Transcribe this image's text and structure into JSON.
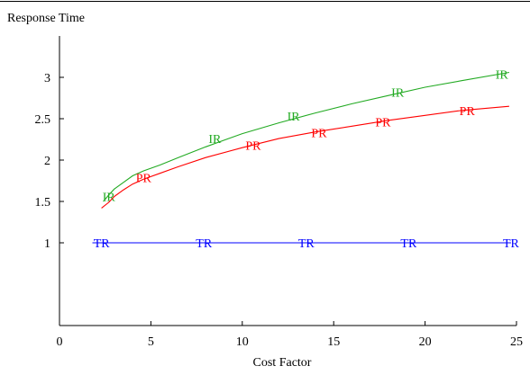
{
  "chart_data": {
    "type": "line",
    "title": "",
    "xlabel": "Cost Factor",
    "ylabel": "Response Time",
    "xlim": [
      0,
      25
    ],
    "ylim": [
      0,
      3.5
    ],
    "xticks": [
      0,
      5,
      10,
      15,
      20,
      25
    ],
    "xtick_labels": [
      "0",
      "5",
      "10",
      "15",
      "20",
      "25"
    ],
    "yticks": [
      1,
      1.5,
      2,
      2.5,
      3
    ],
    "ytick_labels": [
      "1",
      "1.5",
      "2",
      "2.5",
      "3"
    ],
    "grid": false,
    "legend": "none",
    "series": [
      {
        "name": "IR",
        "color": "#22aa22",
        "curve": {
          "x": [
            2.4,
            2.7,
            3.0,
            3.5,
            4.0,
            4.6,
            5.5,
            6.5,
            8.0,
            10.0,
            12.0,
            14.0,
            16.0,
            18.0,
            20.0,
            22.0,
            24.6
          ],
          "y": [
            1.5,
            1.58,
            1.65,
            1.73,
            1.81,
            1.87,
            1.94,
            2.03,
            2.16,
            2.32,
            2.45,
            2.57,
            2.68,
            2.78,
            2.88,
            2.96,
            3.06
          ]
        },
        "markers": {
          "x": [
            2.7,
            8.5,
            12.8,
            18.5,
            24.2
          ],
          "y": [
            1.56,
            2.26,
            2.53,
            2.82,
            3.04
          ]
        }
      },
      {
        "name": "PR",
        "color": "#ff0000",
        "curve": {
          "x": [
            2.3,
            2.7,
            3.0,
            3.5,
            4.0,
            4.6,
            5.5,
            6.5,
            8.0,
            10.0,
            12.0,
            14.0,
            16.0,
            18.0,
            20.0,
            22.0,
            24.6
          ],
          "y": [
            1.42,
            1.49,
            1.56,
            1.64,
            1.71,
            1.77,
            1.84,
            1.92,
            2.03,
            2.15,
            2.26,
            2.34,
            2.41,
            2.48,
            2.54,
            2.6,
            2.65
          ]
        },
        "markers": {
          "x": [
            4.6,
            10.6,
            14.2,
            17.7,
            22.3
          ],
          "y": [
            1.79,
            2.18,
            2.33,
            2.46,
            2.6
          ]
        }
      },
      {
        "name": "TR",
        "color": "#0000ff",
        "curve": {
          "x": [
            1.8,
            24.7
          ],
          "y": [
            1.0,
            1.0
          ]
        },
        "markers": {
          "x": [
            2.3,
            7.9,
            13.5,
            19.1,
            24.7
          ],
          "y": [
            1.0,
            1.0,
            1.0,
            1.0,
            1.0
          ]
        }
      }
    ]
  }
}
